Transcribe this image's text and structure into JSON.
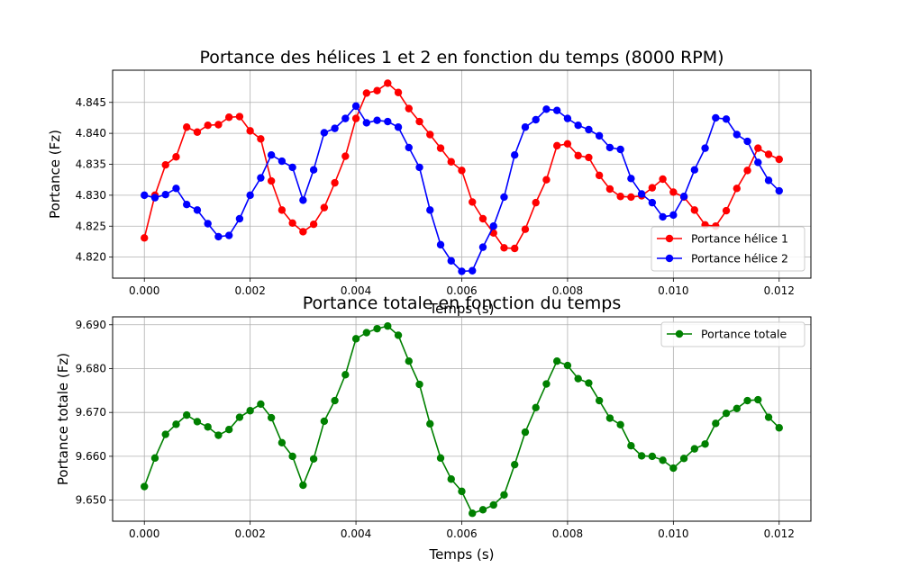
{
  "chart_data": [
    {
      "type": "line",
      "title": "Portance des hélices 1 et 2 en fonction du temps (8000 RPM)",
      "xlabel": "Temps (s)",
      "ylabel": "Portance (Fz)",
      "xlim": [
        -0.0006,
        0.0126
      ],
      "ylim": [
        4.8166,
        4.8502
      ],
      "xticks": [
        0.0,
        0.002,
        0.004,
        0.006,
        0.008,
        0.01,
        0.012
      ],
      "xtick_labels": [
        "0.000",
        "0.002",
        "0.004",
        "0.006",
        "0.008",
        "0.010",
        "0.012"
      ],
      "yticks": [
        4.82,
        4.825,
        4.83,
        4.835,
        4.84,
        4.845
      ],
      "ytick_labels": [
        "4.820",
        "4.825",
        "4.830",
        "4.835",
        "4.840",
        "4.845"
      ],
      "grid": true,
      "legend": "lower-right",
      "x": [
        0.0,
        0.0002,
        0.0004,
        0.0006,
        0.0008,
        0.001,
        0.0012,
        0.0014,
        0.0016,
        0.0018,
        0.002,
        0.0022,
        0.0024,
        0.0026,
        0.0028,
        0.003,
        0.0032,
        0.0034,
        0.0036,
        0.0038,
        0.004,
        0.0042,
        0.0044,
        0.0046,
        0.0048,
        0.005,
        0.0052,
        0.0054,
        0.0056,
        0.0058,
        0.006,
        0.0062,
        0.0064,
        0.0066,
        0.0068,
        0.007,
        0.0072,
        0.0074,
        0.0076,
        0.0078,
        0.008,
        0.0082,
        0.0084,
        0.0086,
        0.0088,
        0.009,
        0.0092,
        0.0094,
        0.0096,
        0.0098,
        0.01,
        0.0102,
        0.0104,
        0.0106,
        0.0108,
        0.011,
        0.0112,
        0.0114,
        0.0116,
        0.0118,
        0.012
      ],
      "series": [
        {
          "name": "Portance hélice 1",
          "color": "#ff0000",
          "values": [
            4.8231,
            4.83,
            4.8349,
            4.8362,
            4.841,
            4.8402,
            4.8413,
            4.8414,
            4.8426,
            4.8427,
            4.8404,
            4.8391,
            4.8323,
            4.8276,
            4.8255,
            4.8241,
            4.8253,
            4.828,
            4.832,
            4.8363,
            4.8424,
            4.8465,
            4.8469,
            4.8481,
            4.8466,
            4.844,
            4.8419,
            4.8398,
            4.8376,
            4.8354,
            4.834,
            4.8289,
            4.8262,
            4.8239,
            4.8215,
            4.8214,
            4.8245,
            4.8288,
            4.8325,
            4.838,
            4.8383,
            4.8364,
            4.8361,
            4.8332,
            4.831,
            4.8298,
            4.8297,
            4.8299,
            4.8312,
            4.8326,
            4.8305,
            4.8297,
            4.8276,
            4.8252,
            4.825,
            4.8275,
            4.8311,
            4.834,
            4.8376,
            4.8366,
            4.8358
          ]
        },
        {
          "name": "Portance hélice 2",
          "color": "#0000ff",
          "values": [
            4.83,
            4.8296,
            4.8301,
            4.8311,
            4.8285,
            4.8276,
            4.8254,
            4.8233,
            4.8235,
            4.8262,
            4.83,
            4.8328,
            4.8365,
            4.8355,
            4.8345,
            4.8292,
            4.8341,
            4.8401,
            4.8408,
            4.8424,
            4.8444,
            4.8417,
            4.8421,
            4.8419,
            4.841,
            4.8377,
            4.8345,
            4.8276,
            4.822,
            4.8194,
            4.8177,
            4.8178,
            4.8216,
            4.825,
            4.8297,
            4.8365,
            4.841,
            4.8422,
            4.8439,
            4.8437,
            4.8424,
            4.8413,
            4.8406,
            4.8396,
            4.8377,
            4.8374,
            4.8327,
            4.8302,
            4.8288,
            4.8265,
            4.8268,
            4.8298,
            4.8341,
            4.8376,
            4.8425,
            4.8423,
            4.8398,
            4.8387,
            4.8353,
            4.8324,
            4.8307
          ]
        }
      ]
    },
    {
      "type": "line",
      "title": "Portance totale en fonction du temps",
      "xlabel": "Temps (s)",
      "ylabel": "Portance totale (Fz)",
      "xlim": [
        -0.0006,
        0.0126
      ],
      "ylim": [
        9.6452,
        9.6918
      ],
      "xticks": [
        0.0,
        0.002,
        0.004,
        0.006,
        0.008,
        0.01,
        0.012
      ],
      "xtick_labels": [
        "0.000",
        "0.002",
        "0.004",
        "0.006",
        "0.008",
        "0.010",
        "0.012"
      ],
      "yticks": [
        9.65,
        9.66,
        9.67,
        9.68,
        9.69
      ],
      "ytick_labels": [
        "9.650",
        "9.660",
        "9.670",
        "9.680",
        "9.690"
      ],
      "grid": true,
      "legend": "upper-right",
      "x": [
        0.0,
        0.0002,
        0.0004,
        0.0006,
        0.0008,
        0.001,
        0.0012,
        0.0014,
        0.0016,
        0.0018,
        0.002,
        0.0022,
        0.0024,
        0.0026,
        0.0028,
        0.003,
        0.0032,
        0.0034,
        0.0036,
        0.0038,
        0.004,
        0.0042,
        0.0044,
        0.0046,
        0.0048,
        0.005,
        0.0052,
        0.0054,
        0.0056,
        0.0058,
        0.006,
        0.0062,
        0.0064,
        0.0066,
        0.0068,
        0.007,
        0.0072,
        0.0074,
        0.0076,
        0.0078,
        0.008,
        0.0082,
        0.0084,
        0.0086,
        0.0088,
        0.009,
        0.0092,
        0.0094,
        0.0096,
        0.0098,
        0.01,
        0.0102,
        0.0104,
        0.0106,
        0.0108,
        0.011,
        0.0112,
        0.0114,
        0.0116,
        0.0118,
        0.012
      ],
      "series": [
        {
          "name": "Portance totale",
          "color": "#008000",
          "values": [
            9.6531,
            9.6596,
            9.665,
            9.6673,
            9.6694,
            9.6679,
            9.6667,
            9.6648,
            9.6661,
            9.6689,
            9.6704,
            9.6719,
            9.6688,
            9.6631,
            9.66,
            9.6534,
            9.6594,
            9.668,
            9.6727,
            9.6786,
            9.6868,
            9.6882,
            9.6891,
            9.6897,
            9.6876,
            9.6817,
            9.6764,
            9.6674,
            9.6596,
            9.6548,
            9.652,
            9.647,
            9.6478,
            9.6489,
            9.6512,
            9.6581,
            9.6655,
            9.6711,
            9.6765,
            9.6817,
            9.6807,
            9.6777,
            9.6767,
            9.6727,
            9.6687,
            9.6672,
            9.6624,
            9.6601,
            9.66,
            9.6591,
            9.6573,
            9.6595,
            9.6617,
            9.6628,
            9.6675,
            9.6698,
            9.6709,
            9.6727,
            9.6729,
            9.6689,
            9.6665
          ]
        }
      ]
    }
  ]
}
